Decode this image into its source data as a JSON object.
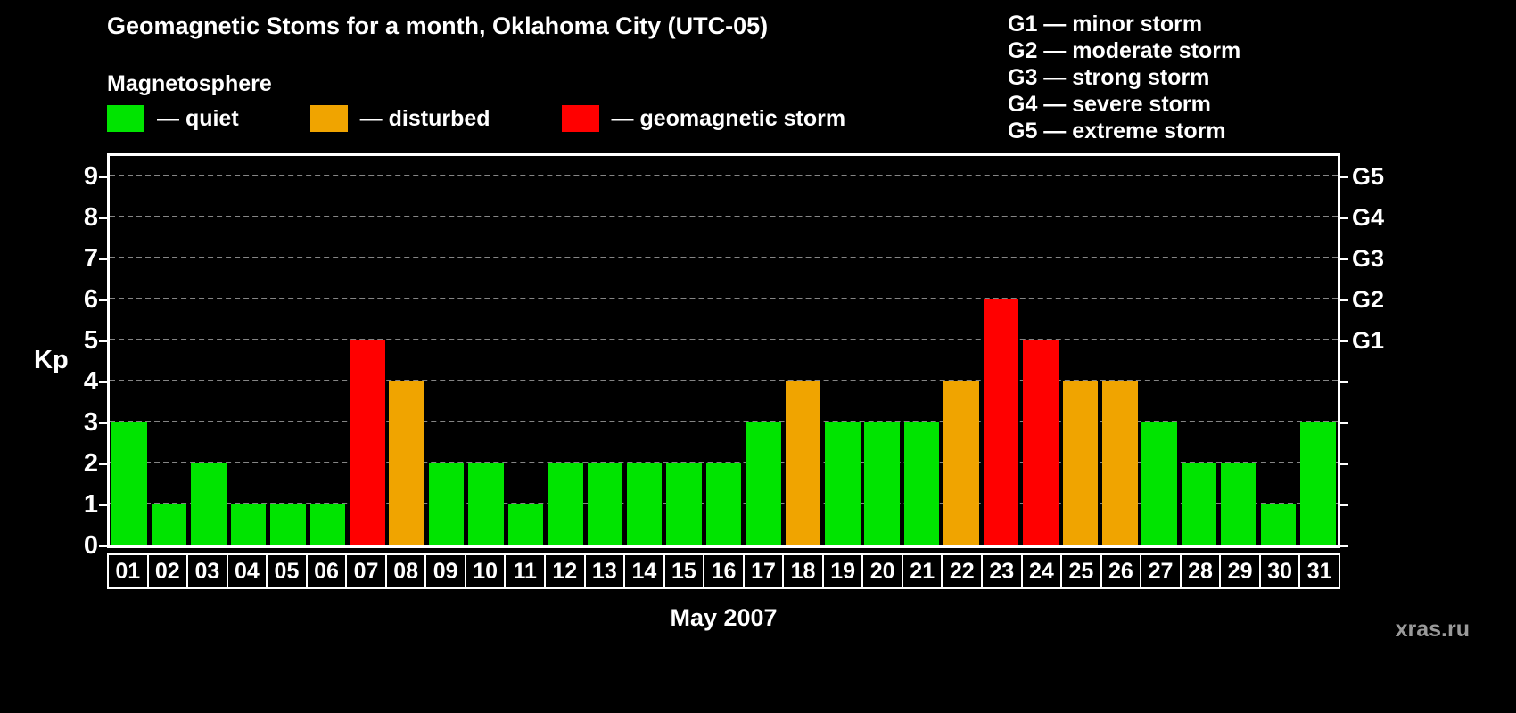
{
  "title": "Geomagnetic Stoms for a month, Oklahoma City (UTC-05)",
  "legend": {
    "heading": "Magnetosphere",
    "items": [
      {
        "status": "quiet",
        "label": "— quiet",
        "color": "#00e400"
      },
      {
        "status": "disturbed",
        "label": "— disturbed",
        "color": "#f0a400"
      },
      {
        "status": "storm",
        "label": "— geomagnetic storm",
        "color": "#ff0000"
      }
    ]
  },
  "storm_scale_legend": [
    "G1 — minor storm",
    "G2 — moderate storm",
    "G3 — strong storm",
    "G4 — severe storm",
    "G5 — extreme storm"
  ],
  "watermark": "xras.ru",
  "chart_data": {
    "type": "bar",
    "title": "Geomagnetic Stoms for a month, Oklahoma City (UTC-05)",
    "xlabel": "May 2007",
    "ylabel": "Kp",
    "ylim": [
      0,
      9.5
    ],
    "grid": "horizontal dashed",
    "legend_position": "top",
    "yticks": [
      0,
      1,
      2,
      3,
      4,
      5,
      6,
      7,
      8,
      9
    ],
    "right_axis_ticks": [
      {
        "label": "G1",
        "value": 5
      },
      {
        "label": "G2",
        "value": 6
      },
      {
        "label": "G3",
        "value": 7
      },
      {
        "label": "G4",
        "value": 8
      },
      {
        "label": "G5",
        "value": 9
      }
    ],
    "categories": [
      "01",
      "02",
      "03",
      "04",
      "05",
      "06",
      "07",
      "08",
      "09",
      "10",
      "11",
      "12",
      "13",
      "14",
      "15",
      "16",
      "17",
      "18",
      "19",
      "20",
      "21",
      "22",
      "23",
      "24",
      "25",
      "26",
      "27",
      "28",
      "29",
      "30",
      "31"
    ],
    "values": [
      3,
      1,
      2,
      1,
      1,
      1,
      5,
      4,
      2,
      2,
      1,
      2,
      2,
      2,
      2,
      2,
      3,
      4,
      3,
      3,
      3,
      4,
      6,
      5,
      4,
      4,
      3,
      2,
      2,
      1,
      3
    ],
    "statuses": [
      "quiet",
      "quiet",
      "quiet",
      "quiet",
      "quiet",
      "quiet",
      "storm",
      "disturbed",
      "quiet",
      "quiet",
      "quiet",
      "quiet",
      "quiet",
      "quiet",
      "quiet",
      "quiet",
      "quiet",
      "disturbed",
      "quiet",
      "quiet",
      "quiet",
      "disturbed",
      "storm",
      "storm",
      "disturbed",
      "disturbed",
      "quiet",
      "quiet",
      "quiet",
      "quiet",
      "quiet"
    ],
    "colors": {
      "quiet": "#00e400",
      "disturbed": "#f0a400",
      "storm": "#ff0000"
    }
  }
}
